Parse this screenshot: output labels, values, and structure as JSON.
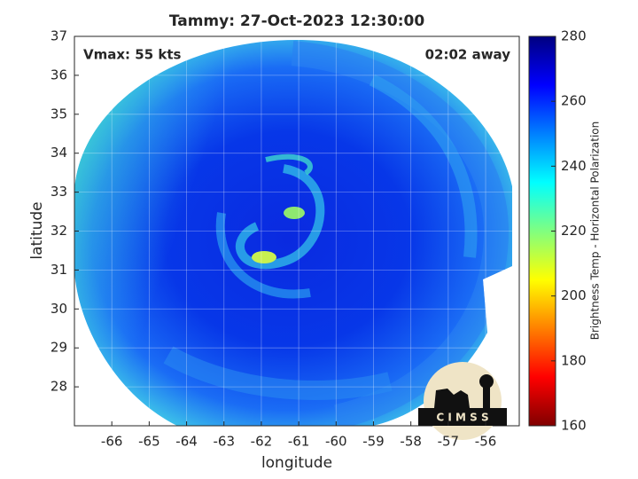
{
  "chart_data": {
    "type": "image",
    "title": "Tammy: 27-Oct-2023 12:30:00",
    "annotations": [
      "Vmax: 55 kts",
      "02:02 away"
    ],
    "xlabel": "longitude",
    "ylabel": "latitude",
    "xlim": [
      -67,
      -55.1
    ],
    "ylim": [
      27,
      37
    ],
    "xticks": [
      -66,
      -65,
      -64,
      -63,
      -62,
      -61,
      -60,
      -59,
      -58,
      -57,
      -56
    ],
    "yticks": [
      28,
      29,
      30,
      31,
      32,
      33,
      34,
      35,
      36,
      37
    ],
    "grid": true,
    "colorbar": {
      "label": "Brightness Temp - Horizontal Polarization",
      "colormap": "jet",
      "lim": [
        160,
        280
      ],
      "ticks": [
        160,
        180,
        200,
        220,
        240,
        260,
        280
      ]
    },
    "logo": "C I M S S"
  }
}
